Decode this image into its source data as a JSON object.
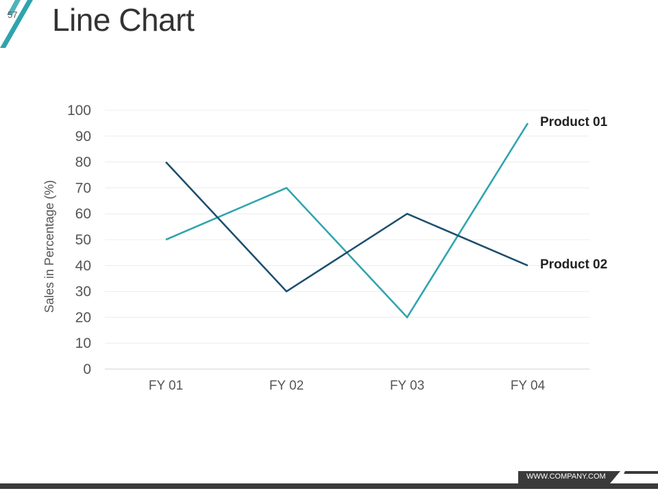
{
  "slide": {
    "number": "57",
    "title": "Line Chart",
    "footer_url": "WWW.COMPANY.COM"
  },
  "colors": {
    "accent": "#2fa4ad",
    "dark": "#1f4e6e",
    "footer": "#3a3a3a"
  },
  "chart_data": {
    "type": "line",
    "categories": [
      "FY 01",
      "FY 02",
      "FY 03",
      "FY 04"
    ],
    "series": [
      {
        "name": "Product 01",
        "values": [
          50,
          70,
          20,
          95
        ],
        "color": "#2fa4ad"
      },
      {
        "name": "Product 02",
        "values": [
          80,
          30,
          60,
          40
        ],
        "color": "#1f4e6e"
      }
    ],
    "ylabel": "Sales in Percentage (%)",
    "ylim": [
      0,
      100
    ],
    "yticks": [
      0,
      10,
      20,
      30,
      40,
      50,
      60,
      70,
      80,
      90,
      100
    ],
    "grid": true,
    "legend": "end-of-line labels"
  }
}
